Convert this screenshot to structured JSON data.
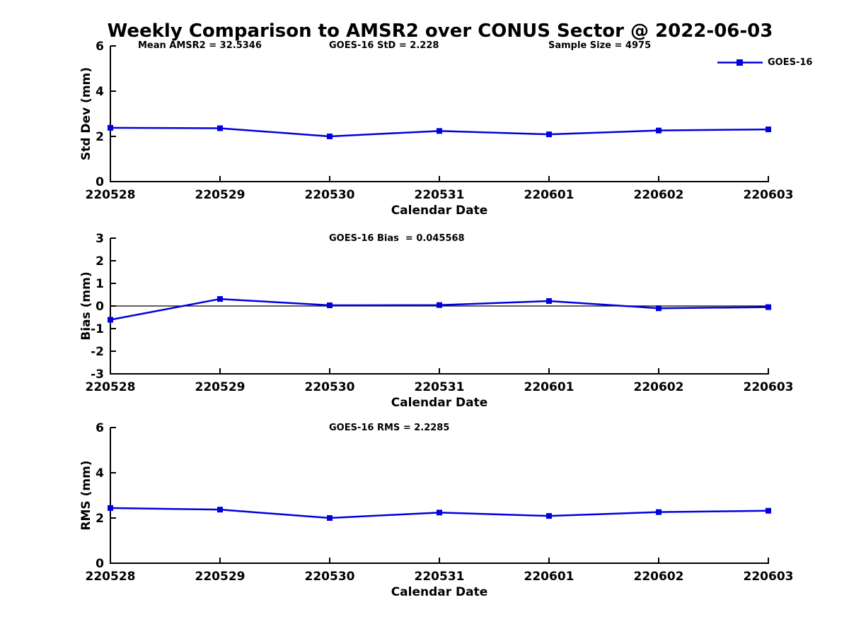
{
  "title": "Weekly Comparison to AMSR2 over CONUS Sector @ 2022-06-03",
  "accent_color": "#0000dd",
  "chart_data": [
    {
      "type": "line",
      "title": "",
      "annotations": [
        "Mean AMSR2 = 32.5346",
        "GOES-16 StD = 2.228",
        "Sample Size = 4975"
      ],
      "xlabel": "Calendar Date",
      "ylabel": "Std Dev (mm)",
      "categories": [
        "220528",
        "220529",
        "220530",
        "220531",
        "220601",
        "220602",
        "220603"
      ],
      "series": [
        {
          "name": "GOES-16",
          "color": "#0000dd",
          "values": [
            2.38,
            2.36,
            2.0,
            2.24,
            2.09,
            2.26,
            2.31
          ]
        }
      ],
      "ylim": [
        0,
        6
      ],
      "yticks": [
        6,
        4,
        2,
        0
      ],
      "grid": false,
      "legend": {
        "label": "GOES-16",
        "position": "top-right"
      }
    },
    {
      "type": "line",
      "title": "GOES-16 Bias  = 0.045568",
      "xlabel": "Calendar Date",
      "ylabel": "Bias (mm)",
      "categories": [
        "220528",
        "220529",
        "220530",
        "220531",
        "220601",
        "220602",
        "220603"
      ],
      "series": [
        {
          "name": "GOES-16",
          "color": "#0000dd",
          "values": [
            -0.61,
            0.31,
            0.03,
            0.04,
            0.22,
            -0.1,
            -0.05
          ]
        }
      ],
      "ylim": [
        -3,
        3
      ],
      "yticks": [
        3,
        2,
        1,
        0,
        -1,
        -2,
        -3
      ],
      "zero_line": true,
      "grid": false
    },
    {
      "type": "line",
      "title": "GOES-16 RMS = 2.2285",
      "xlabel": "Calendar Date",
      "ylabel": "RMS (mm)",
      "categories": [
        "220528",
        "220529",
        "220530",
        "220531",
        "220601",
        "220602",
        "220603"
      ],
      "series": [
        {
          "name": "GOES-16",
          "color": "#0000dd",
          "values": [
            2.44,
            2.37,
            2.0,
            2.24,
            2.09,
            2.26,
            2.32
          ]
        }
      ],
      "ylim": [
        0,
        6
      ],
      "yticks": [
        6,
        4,
        2,
        0
      ],
      "grid": false
    }
  ]
}
